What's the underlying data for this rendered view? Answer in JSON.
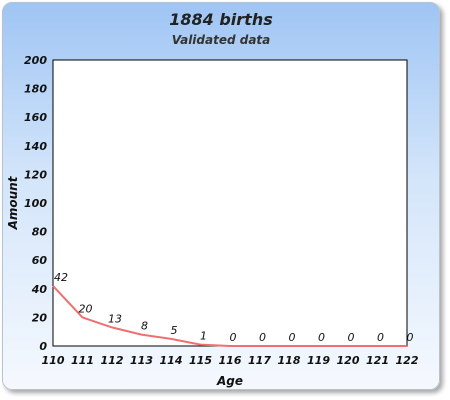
{
  "chart_data": {
    "type": "line",
    "title": "1884 births",
    "subtitle": "Validated data",
    "xlabel": "Age",
    "ylabel": "Amount",
    "categories": [
      "110",
      "111",
      "112",
      "113",
      "114",
      "115",
      "116",
      "117",
      "118",
      "119",
      "120",
      "121",
      "122"
    ],
    "series": [
      {
        "values": [
          42,
          20,
          13,
          8,
          5,
          1,
          0,
          0,
          0,
          0,
          0,
          0,
          0
        ]
      }
    ],
    "ylim": [
      0,
      200
    ],
    "yticks": [
      "0",
      "20",
      "40",
      "60",
      "80",
      "100",
      "120",
      "140",
      "160",
      "180",
      "200"
    ],
    "data_labels": [
      "42",
      "20",
      "13",
      "8",
      "5",
      "1",
      "0",
      "0",
      "0",
      "0",
      "0",
      "0",
      "0"
    ],
    "grid": false,
    "legend": "none",
    "colors": {
      "line": "#f07070",
      "plot_background": "#ffffff",
      "plot_border": "#000000"
    }
  }
}
